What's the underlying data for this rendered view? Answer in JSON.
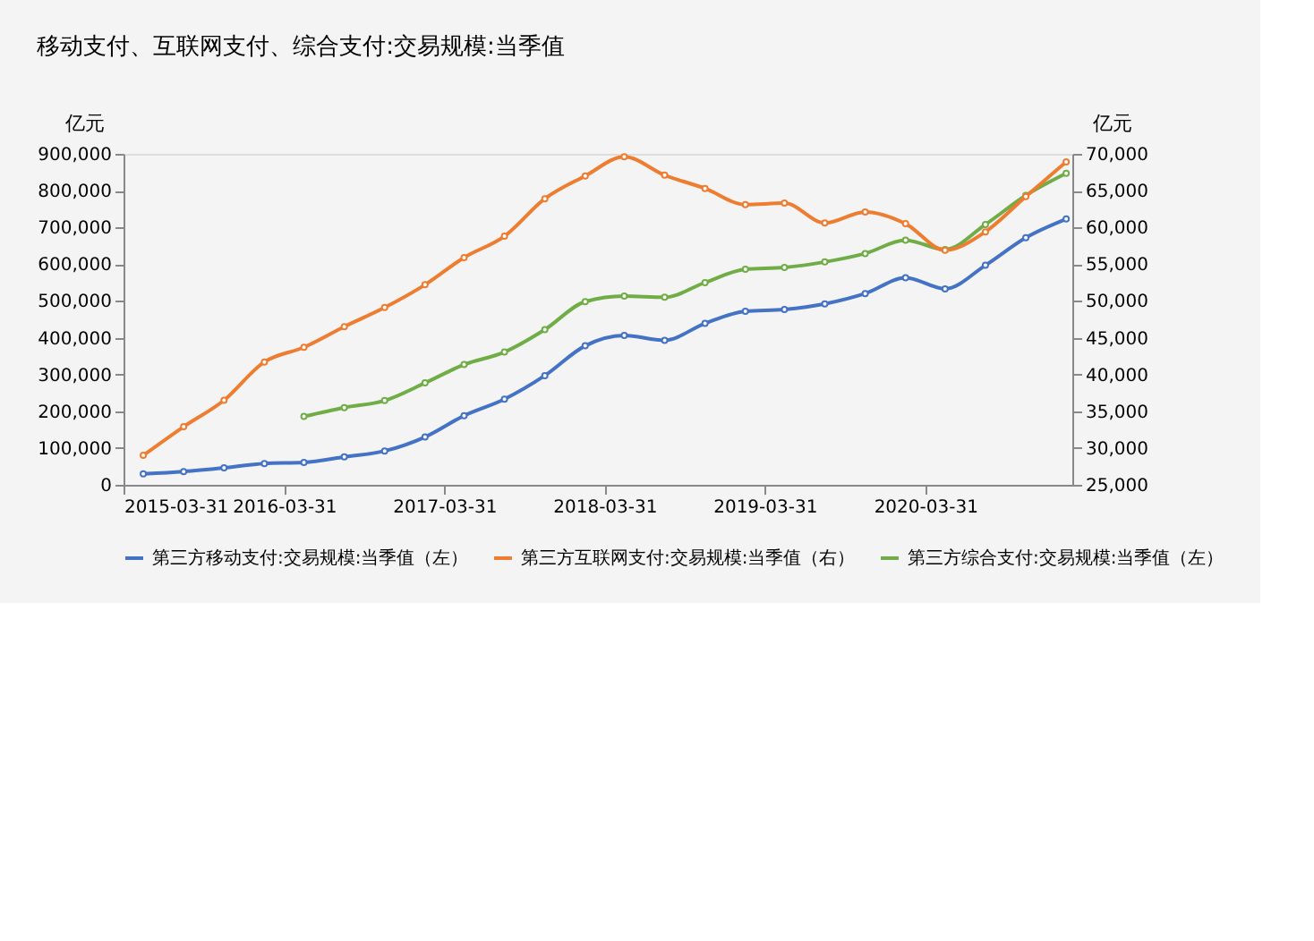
{
  "chart_data": {
    "type": "line",
    "title": "移动支付、互联网支付、综合支付:交易规模:当季值",
    "ylabel": "亿元",
    "y2label": "亿元",
    "x": [
      "2015-05-15",
      "2015-08-15",
      "2015-11-15",
      "2016-02-15",
      "2016-05-15",
      "2016-08-15",
      "2016-11-15",
      "2017-02-15",
      "2017-05-15",
      "2017-08-15",
      "2017-11-15",
      "2018-02-15",
      "2018-05-15",
      "2018-08-15",
      "2018-11-15",
      "2019-02-15",
      "2019-05-15",
      "2019-08-15",
      "2019-11-15",
      "2020-02-15",
      "2020-05-15",
      "2020-08-15",
      "2020-11-15",
      "2021-02-15"
    ],
    "series": [
      {
        "name": "第三方移动支付:交易规模:当季值（左）",
        "color": "#4472c4",
        "values": [
          30000,
          36000,
          46000,
          58000,
          61000,
          76000,
          92000,
          130000,
          188000,
          233000,
          297000,
          378000,
          406000,
          393000,
          439000,
          472000,
          477000,
          492000,
          520000,
          563000,
          533000,
          597000,
          672000,
          723000
        ]
      },
      {
        "name": "第三方互联网支付:交易规模:当季值（右）",
        "color": "#ed7d31",
        "axis": "y2",
        "values": [
          29000,
          32900,
          36500,
          41700,
          43700,
          46500,
          49100,
          52200,
          55900,
          58800,
          63900,
          67000,
          69600,
          67100,
          65300,
          63100,
          63300,
          60600,
          62100,
          60500,
          56900,
          59400,
          64200,
          68900
        ]
      },
      {
        "name": "第三方综合支付:交易规模:当季值（左）",
        "color": "#70ad47",
        "values": [
          null,
          null,
          null,
          null,
          186000,
          210000,
          229000,
          277000,
          327000,
          361000,
          422000,
          498000,
          513000,
          510000,
          550000,
          586000,
          591000,
          606000,
          629000,
          665000,
          640000,
          708000,
          787000,
          847000
        ]
      }
    ],
    "xlim": [
      "2015-03-31",
      "2021-03-01"
    ],
    "xticks": [
      "2015-03-31",
      "2016-03-31",
      "2017-03-31",
      "2018-03-31",
      "2019-03-31",
      "2020-03-31"
    ],
    "ylim": [
      0,
      900000
    ],
    "yticks": [
      0,
      {
        "value": 100000,
        "label": "100,000"
      },
      {
        "value": 200000,
        "label": "200,000"
      },
      {
        "value": 300000,
        "label": "300,000"
      },
      {
        "value": 400000,
        "label": "400,000"
      },
      {
        "value": 500000,
        "label": "500,000"
      },
      {
        "value": 600000,
        "label": "600,000"
      },
      {
        "value": 700000,
        "label": "700,000"
      },
      {
        "value": 800000,
        "label": "800,000"
      },
      {
        "value": 900000,
        "label": "900,000"
      }
    ],
    "y2lim": [
      25000,
      70000
    ],
    "y2ticks": [
      {
        "value": 25000,
        "label": "25,000"
      },
      {
        "value": 30000,
        "label": "30,000"
      },
      {
        "value": 35000,
        "label": "35,000"
      },
      {
        "value": 40000,
        "label": "40,000"
      },
      {
        "value": 45000,
        "label": "45,000"
      },
      {
        "value": 50000,
        "label": "50,000"
      },
      {
        "value": 55000,
        "label": "55,000"
      },
      {
        "value": 60000,
        "label": "60,000"
      },
      {
        "value": 65000,
        "label": "65,000"
      },
      {
        "value": 70000,
        "label": "70,000"
      }
    ],
    "marker": "circle",
    "line_style": "solid",
    "grid": false,
    "legend": "bottom"
  }
}
